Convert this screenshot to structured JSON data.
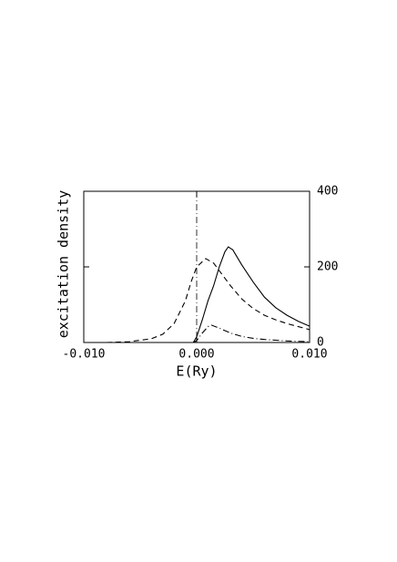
{
  "chart_data": {
    "type": "line",
    "xlabel": "E(Ry)",
    "ylabel": "excitation density",
    "xlim": [
      -0.01,
      0.01
    ],
    "xticks": [
      {
        "value": -0.01,
        "label": "-0.010"
      },
      {
        "value": 0,
        "label": "0.000"
      },
      {
        "value": 0.01,
        "label": "0.010"
      }
    ],
    "ylim": [
      0,
      400
    ],
    "yticks": [
      0,
      200,
      400
    ],
    "yaxis_side": "right",
    "vline_x": 0,
    "series": [
      {
        "color": "#000000",
        "dash": "solid",
        "x": [
          -0.0003,
          0,
          0.0005,
          0.001,
          0.0015,
          0.002,
          0.0025,
          0.0028,
          0.0032,
          0.004,
          0.005,
          0.006,
          0.007,
          0.008,
          0.009,
          0.01
        ],
        "values": [
          0,
          15,
          60,
          110,
          150,
          200,
          240,
          253,
          245,
          205,
          160,
          120,
          92,
          72,
          56,
          43
        ]
      },
      {
        "color": "#000000",
        "dash": "dashed",
        "x": [
          -0.008,
          -0.006,
          -0.004,
          -0.003,
          -0.002,
          -0.001,
          -0.0005,
          0,
          0.0008,
          0.0015,
          0.002,
          0.003,
          0.004,
          0.005,
          0.006,
          0.007,
          0.008,
          0.009,
          0.01
        ],
        "values": [
          0,
          2,
          10,
          22,
          50,
          110,
          160,
          200,
          222,
          210,
          190,
          150,
          115,
          90,
          72,
          60,
          50,
          42,
          34
        ]
      },
      {
        "color": "#000000",
        "dash": "dashdot",
        "x": [
          -0.0003,
          0,
          0.0005,
          0.001,
          0.0013,
          0.002,
          0.003,
          0.004,
          0.005,
          0.006,
          0.007,
          0.008,
          0.009,
          0.01
        ],
        "values": [
          0,
          5,
          25,
          42,
          46,
          38,
          25,
          16,
          11,
          8,
          6,
          4,
          3,
          2
        ]
      }
    ]
  }
}
